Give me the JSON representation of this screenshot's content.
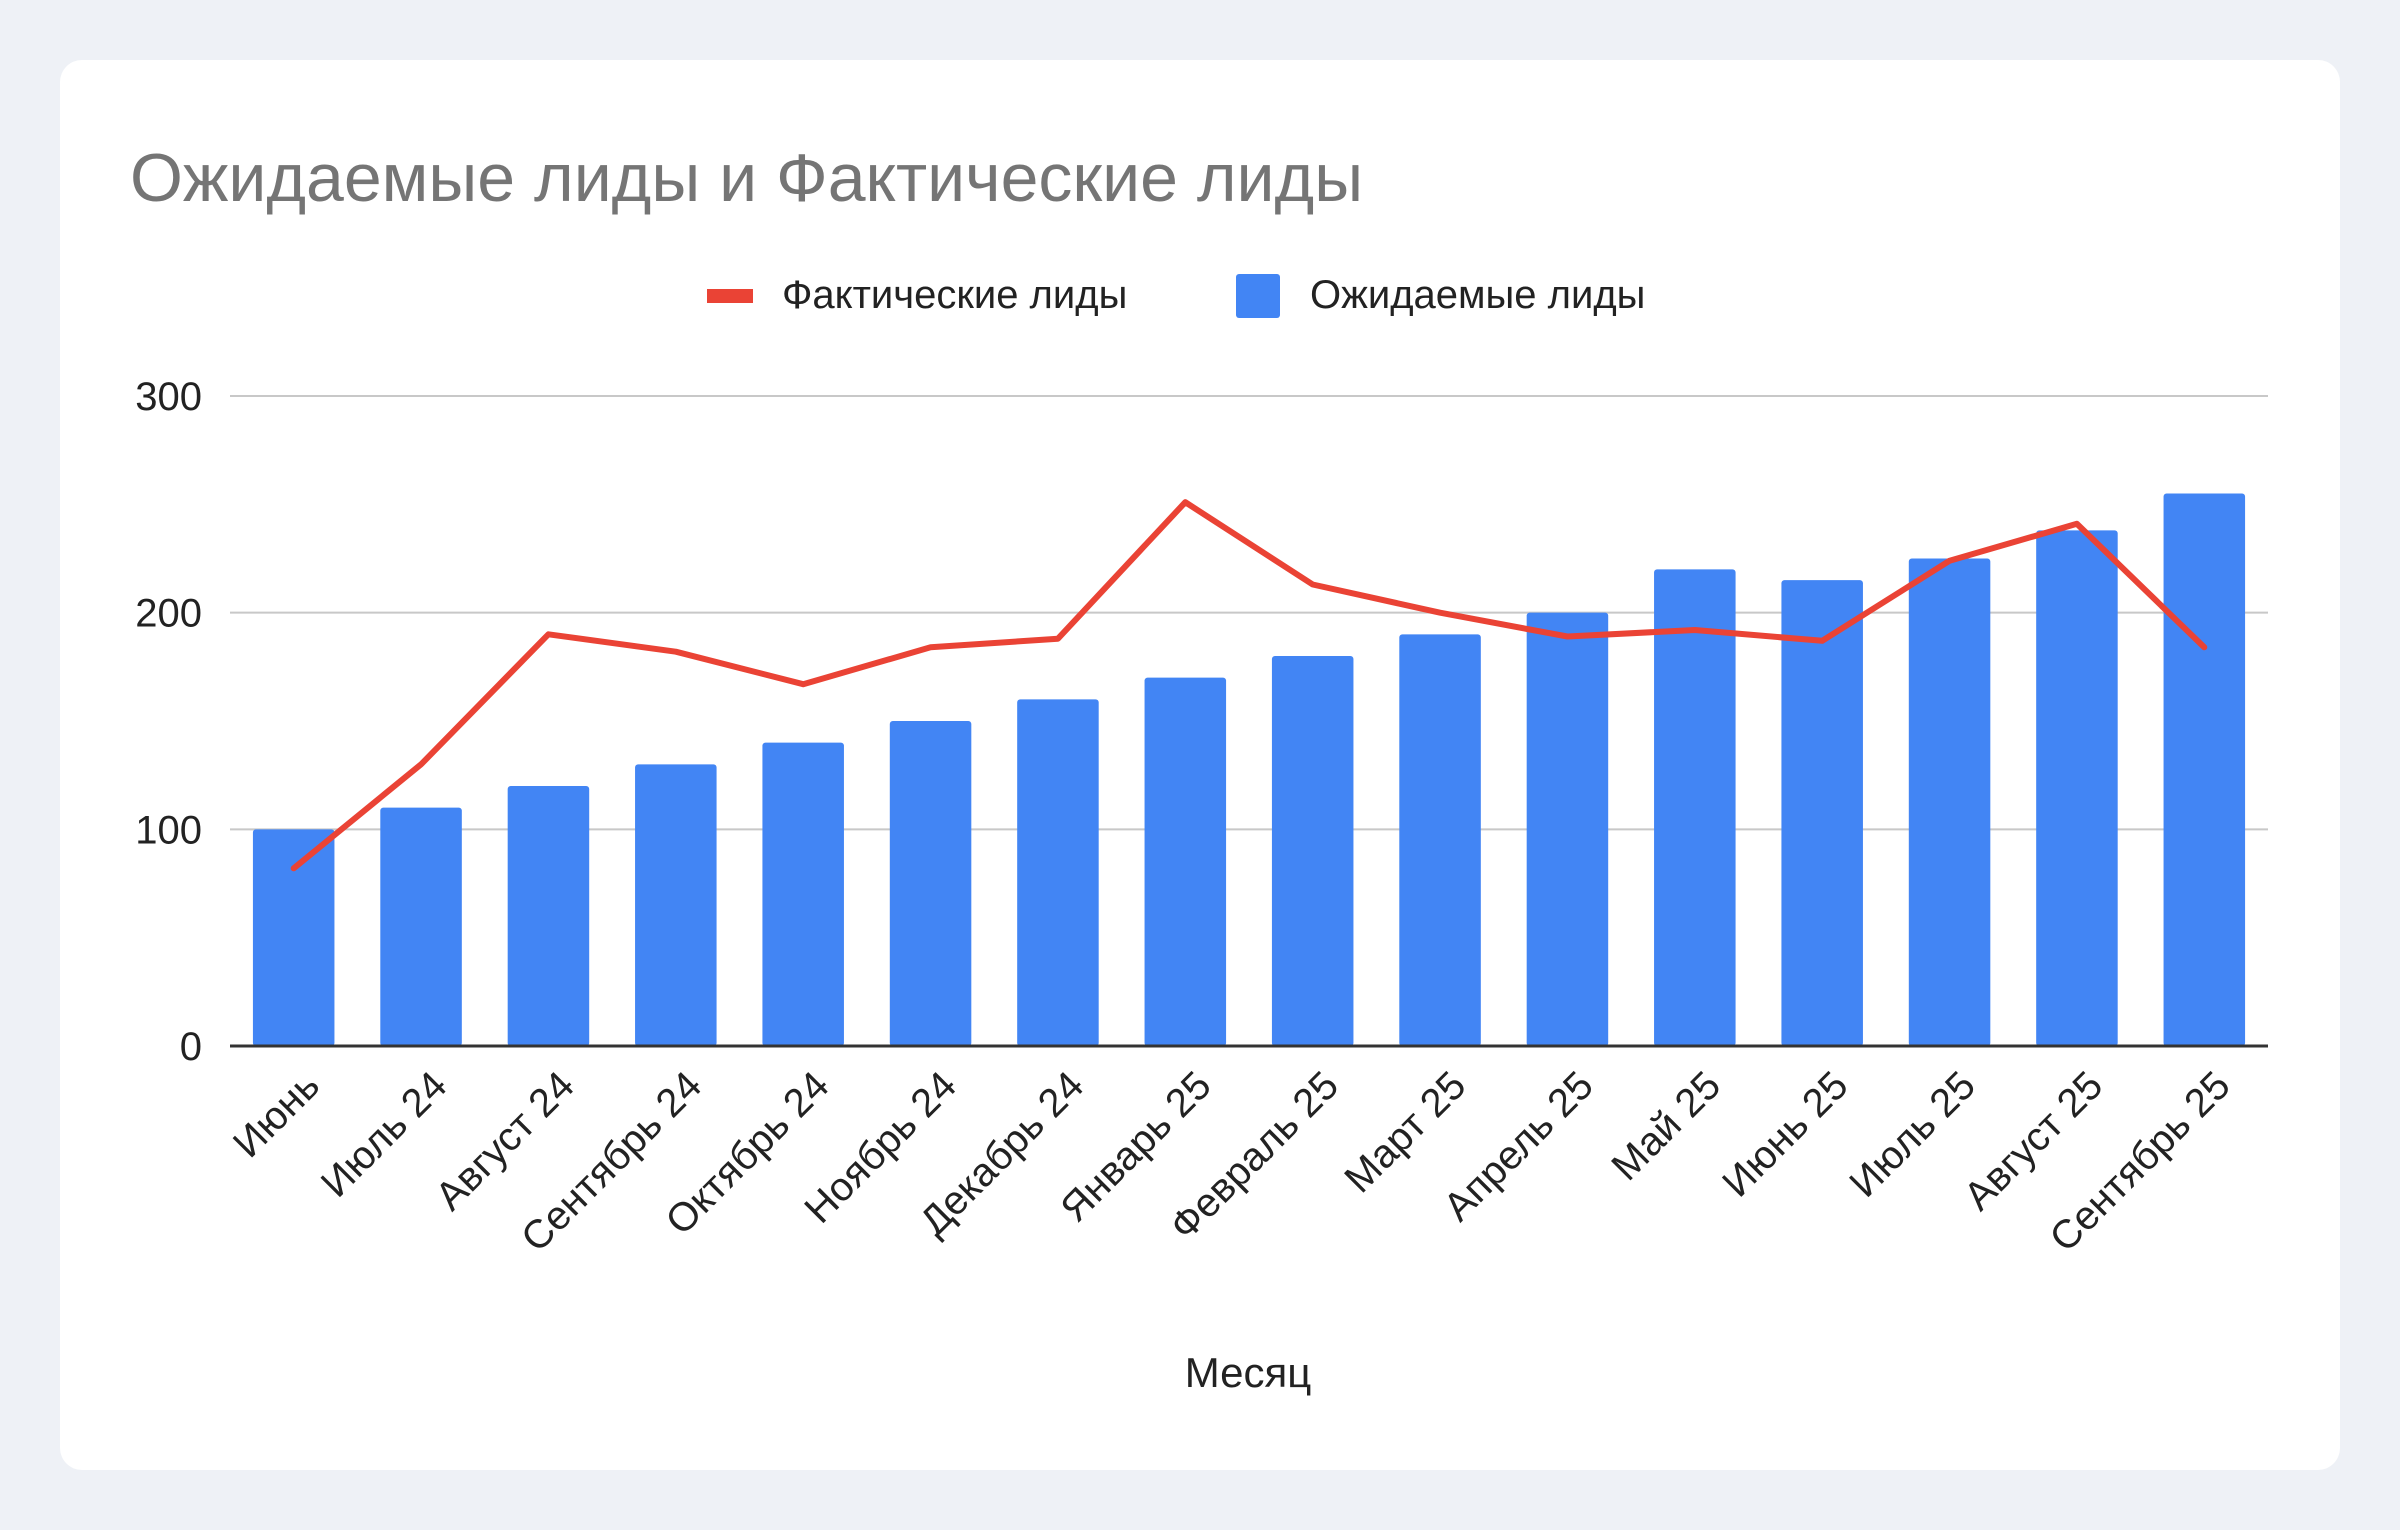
{
  "chart_data": {
    "type": "bar",
    "title": "Ожидаемые лиды и Фактические лиды",
    "xlabel": "Месяц",
    "ylabel": "",
    "ylim": [
      0,
      300
    ],
    "yticks": [
      0,
      100,
      200,
      300
    ],
    "grid": true,
    "legend_position": "top-center",
    "categories": [
      "Июнь",
      "Июль 24",
      "Август 24",
      "Сентябрь 24",
      "Октябрь 24",
      "Ноябрь 24",
      "Декабрь 24",
      "Январь 25",
      "Февраль 25",
      "Март 25",
      "Апрель 25",
      "Май 25",
      "Июнь 25",
      "Июль 25",
      "Август 25",
      "Сентябрь 25"
    ],
    "series": [
      {
        "name": "Ожидаемые лиды",
        "type": "bar",
        "color": "#4285f4",
        "values": [
          100,
          110,
          120,
          130,
          140,
          150,
          160,
          170,
          180,
          190,
          200,
          220,
          215,
          225,
          238,
          255
        ]
      },
      {
        "name": "Фактические лиды",
        "type": "line",
        "color": "#ea4335",
        "values": [
          82,
          130,
          190,
          182,
          167,
          184,
          188,
          251,
          213,
          200,
          189,
          192,
          187,
          224,
          241,
          184
        ]
      }
    ],
    "legend_order": [
      "Фактические лиды",
      "Ожидаемые лиды"
    ]
  }
}
